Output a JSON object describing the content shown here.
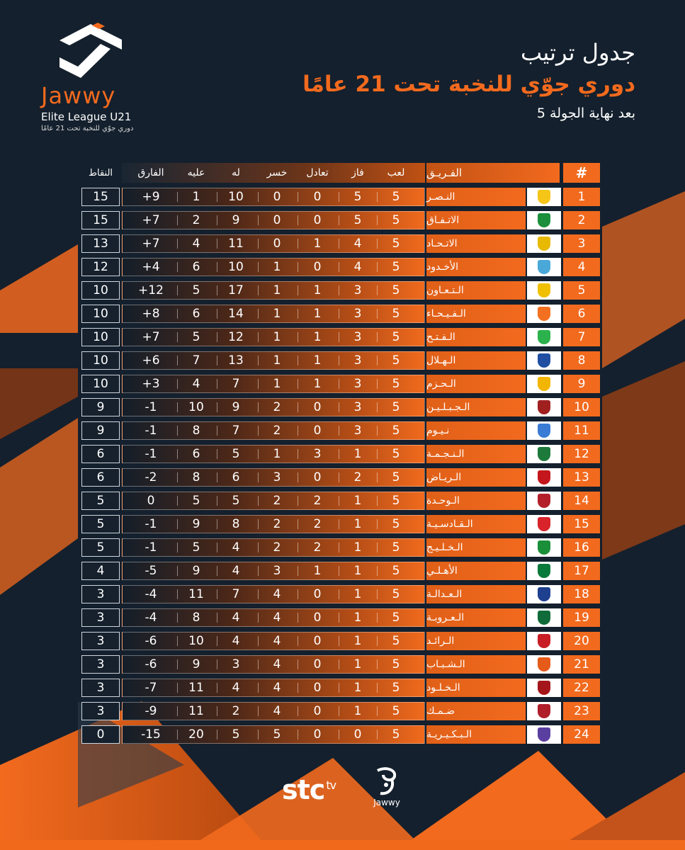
{
  "logo": {
    "word": "Jawwy",
    "sub": "Elite League U21",
    "sub_ar": "دوري جوّي للنخبة تحت 21 عامًا"
  },
  "title": {
    "line1": "جدول ترتيب",
    "line2": "دوري جوّي للنخبة تحت 21 عامًا",
    "line3": "بعد نهاية الجولة 5"
  },
  "colors": {
    "accent": "#f26a1e",
    "background": "#14202d"
  },
  "table": {
    "headers": {
      "rank": "#",
      "team": "الفـريـق",
      "played": "لعب",
      "won": "فاز",
      "drawn": "تعادل",
      "lost": "خسر",
      "gf": "له",
      "ga": "عليه",
      "gd": "الفارق",
      "points": "النقاط"
    },
    "rows": [
      {
        "rank": "1",
        "team": "النـصـر",
        "played": "5",
        "won": "5",
        "drawn": "0",
        "lost": "0",
        "gf": "10",
        "ga": "1",
        "gd": "+9",
        "points": "15",
        "crest": "#f5c518"
      },
      {
        "rank": "2",
        "team": "الاتـفـاق",
        "played": "5",
        "won": "5",
        "drawn": "0",
        "lost": "0",
        "gf": "9",
        "ga": "2",
        "gd": "+7",
        "points": "15",
        "crest": "#1b8f3c"
      },
      {
        "rank": "3",
        "team": "الاتـحـاد",
        "played": "5",
        "won": "4",
        "drawn": "1",
        "lost": "0",
        "gf": "11",
        "ga": "4",
        "gd": "+7",
        "points": "13",
        "crest": "#e7b900"
      },
      {
        "rank": "4",
        "team": "الأخـدود",
        "played": "5",
        "won": "4",
        "drawn": "0",
        "lost": "1",
        "gf": "10",
        "ga": "6",
        "gd": "+4",
        "points": "12",
        "crest": "#4aa8d8"
      },
      {
        "rank": "5",
        "team": "الـتـعـاون",
        "played": "5",
        "won": "3",
        "drawn": "1",
        "lost": "1",
        "gf": "17",
        "ga": "5",
        "gd": "+12",
        "points": "10",
        "crest": "#f0c000"
      },
      {
        "rank": "6",
        "team": "الـفـيـحـاء",
        "played": "5",
        "won": "3",
        "drawn": "1",
        "lost": "1",
        "gf": "14",
        "ga": "6",
        "gd": "+8",
        "points": "10",
        "crest": "#f37021"
      },
      {
        "rank": "7",
        "team": "الـفـتـح",
        "played": "5",
        "won": "3",
        "drawn": "1",
        "lost": "1",
        "gf": "12",
        "ga": "5",
        "gd": "+7",
        "points": "10",
        "crest": "#2bb24c"
      },
      {
        "rank": "8",
        "team": "الـهـلال",
        "played": "5",
        "won": "3",
        "drawn": "1",
        "lost": "1",
        "gf": "13",
        "ga": "7",
        "gd": "+6",
        "points": "10",
        "crest": "#1f4ea3"
      },
      {
        "rank": "9",
        "team": "الـحـزم",
        "played": "5",
        "won": "3",
        "drawn": "1",
        "lost": "1",
        "gf": "7",
        "ga": "4",
        "gd": "+3",
        "points": "10",
        "crest": "#f2b600"
      },
      {
        "rank": "10",
        "team": "الـجـبـلـيـن",
        "played": "5",
        "won": "3",
        "drawn": "0",
        "lost": "2",
        "gf": "9",
        "ga": "10",
        "gd": "-1",
        "points": "9",
        "crest": "#a02020"
      },
      {
        "rank": "11",
        "team": "نـيـوم",
        "played": "5",
        "won": "3",
        "drawn": "0",
        "lost": "2",
        "gf": "7",
        "ga": "8",
        "gd": "-1",
        "points": "9",
        "crest": "#3a7bd5"
      },
      {
        "rank": "12",
        "team": "الـنـجـمـة",
        "played": "5",
        "won": "1",
        "drawn": "3",
        "lost": "1",
        "gf": "5",
        "ga": "6",
        "gd": "-1",
        "points": "6",
        "crest": "#1e7a3a"
      },
      {
        "rank": "13",
        "team": "الـريـاض",
        "played": "5",
        "won": "2",
        "drawn": "0",
        "lost": "3",
        "gf": "6",
        "ga": "8",
        "gd": "-2",
        "points": "6",
        "crest": "#c4161c"
      },
      {
        "rank": "14",
        "team": "الـوحـدة",
        "played": "5",
        "won": "1",
        "drawn": "2",
        "lost": "2",
        "gf": "5",
        "ga": "5",
        "gd": "0",
        "points": "5",
        "crest": "#b3202a"
      },
      {
        "rank": "15",
        "team": "الـقـادسـيـة",
        "played": "5",
        "won": "1",
        "drawn": "2",
        "lost": "2",
        "gf": "8",
        "ga": "9",
        "gd": "-1",
        "points": "5",
        "crest": "#d8232a"
      },
      {
        "rank": "16",
        "team": "الـخـلـيـج",
        "played": "5",
        "won": "1",
        "drawn": "2",
        "lost": "2",
        "gf": "4",
        "ga": "5",
        "gd": "-1",
        "points": "5",
        "crest": "#1a8f3a"
      },
      {
        "rank": "17",
        "team": "الأهـلـي",
        "played": "5",
        "won": "1",
        "drawn": "1",
        "lost": "3",
        "gf": "4",
        "ga": "9",
        "gd": "-5",
        "points": "4",
        "crest": "#0a7a3b"
      },
      {
        "rank": "18",
        "team": "الـعـدالـة",
        "played": "5",
        "won": "1",
        "drawn": "0",
        "lost": "4",
        "gf": "7",
        "ga": "11",
        "gd": "-4",
        "points": "3",
        "crest": "#1f3f8f"
      },
      {
        "rank": "19",
        "team": "الـعـروبـة",
        "played": "5",
        "won": "1",
        "drawn": "0",
        "lost": "4",
        "gf": "4",
        "ga": "8",
        "gd": "-4",
        "points": "3",
        "crest": "#0f6b3a"
      },
      {
        "rank": "20",
        "team": "الـرائـد",
        "played": "5",
        "won": "1",
        "drawn": "0",
        "lost": "4",
        "gf": "4",
        "ga": "10",
        "gd": "-6",
        "points": "3",
        "crest": "#c81d25"
      },
      {
        "rank": "21",
        "team": "الـشـبـاب",
        "played": "5",
        "won": "1",
        "drawn": "0",
        "lost": "4",
        "gf": "3",
        "ga": "9",
        "gd": "-6",
        "points": "3",
        "crest": "#e65a1a"
      },
      {
        "rank": "22",
        "team": "الـخـلـود",
        "played": "5",
        "won": "1",
        "drawn": "0",
        "lost": "4",
        "gf": "4",
        "ga": "11",
        "gd": "-7",
        "points": "3",
        "crest": "#a4161a"
      },
      {
        "rank": "23",
        "team": "ضـمـك",
        "played": "5",
        "won": "1",
        "drawn": "0",
        "lost": "4",
        "gf": "2",
        "ga": "11",
        "gd": "-9",
        "points": "3",
        "crest": "#b01e2a"
      },
      {
        "rank": "24",
        "team": "الـبـكـيـريـة",
        "played": "5",
        "won": "0",
        "drawn": "0",
        "lost": "5",
        "gf": "5",
        "ga": "20",
        "gd": "-15",
        "points": "0",
        "crest": "#5b3fa0"
      }
    ]
  },
  "footer": {
    "stc": "stc",
    "tv": "tv",
    "jawwy": "Jawwy"
  }
}
